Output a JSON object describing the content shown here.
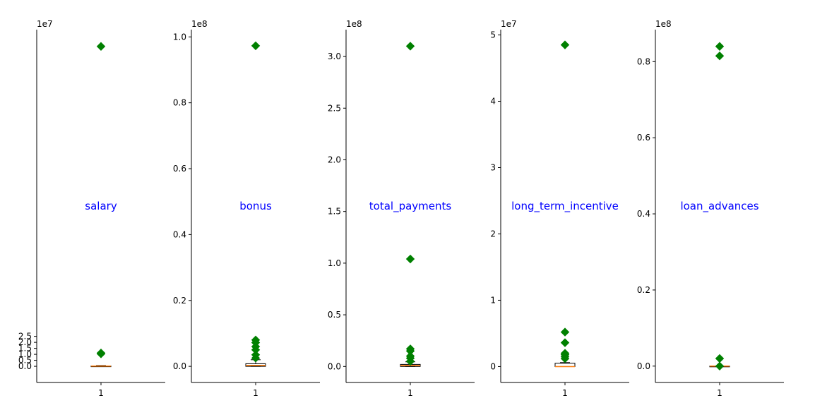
{
  "chart_data": [
    {
      "type": "box",
      "annotation": "salary",
      "exponent_label": "1e7",
      "ylim": [
        -1.35,
        28.1
      ],
      "yticks": [
        0.0,
        0.5,
        1.0,
        1.5,
        2.0,
        2.5
      ],
      "ytick_labels": [
        "0.0",
        "0.5",
        "1.0",
        "1.5",
        "2.0",
        "2.5"
      ],
      "xtick_labels": [
        "1"
      ],
      "box": {
        "q1": 0.0,
        "median": 0.021,
        "q3": 0.027,
        "whisker_low": 0.0,
        "whisker_high": 0.065
      },
      "fliers": [
        1.04,
        1.11,
        26.7
      ]
    },
    {
      "type": "box",
      "annotation": "bonus",
      "exponent_label": "1e8",
      "ylim": [
        -0.049,
        1.022
      ],
      "yticks": [
        0.0,
        0.2,
        0.4,
        0.6,
        0.8,
        1.0
      ],
      "ytick_labels": [
        "0.0",
        "0.2",
        "0.4",
        "0.6",
        "0.8",
        "1.0"
      ],
      "xtick_labels": [
        "1"
      ],
      "box": {
        "q1": 0.0,
        "median": 0.003,
        "q3": 0.008,
        "whisker_low": 0.0,
        "whisker_high": 0.02
      },
      "fliers": [
        0.025,
        0.035,
        0.05,
        0.06,
        0.072,
        0.08,
        0.973
      ]
    },
    {
      "type": "box",
      "annotation": "total_payments",
      "exponent_label": "1e8",
      "ylim": [
        -0.155,
        3.26
      ],
      "yticks": [
        0.0,
        0.5,
        1.0,
        1.5,
        2.0,
        2.5,
        3.0
      ],
      "ytick_labels": [
        "0.0",
        "0.5",
        "1.0",
        "1.5",
        "2.0",
        "2.5",
        "3.0"
      ],
      "xtick_labels": [
        "1"
      ],
      "box": {
        "q1": 0.0,
        "median": 0.011,
        "q3": 0.02,
        "whisker_low": 0.0,
        "whisker_high": 0.045
      },
      "fliers": [
        0.05,
        0.08,
        0.1,
        0.15,
        0.17,
        1.04,
        3.1
      ]
    },
    {
      "type": "box",
      "annotation": "long_term_incentive",
      "exponent_label": "1e7",
      "ylim": [
        -0.24,
        5.08
      ],
      "yticks": [
        0,
        1,
        2,
        3,
        4,
        5
      ],
      "ytick_labels": [
        "0",
        "1",
        "2",
        "3",
        "4",
        "5"
      ],
      "xtick_labels": [
        "1"
      ],
      "box": {
        "q1": 0.0,
        "median": 0.0,
        "q3": 0.05,
        "whisker_low": 0.0,
        "whisker_high": 0.06
      },
      "fliers": [
        0.12,
        0.15,
        0.18,
        0.2,
        0.36,
        0.52,
        4.85
      ]
    },
    {
      "type": "box",
      "annotation": "loan_advances",
      "exponent_label": "1e8",
      "ylim": [
        -0.043,
        0.884
      ],
      "yticks": [
        0.0,
        0.2,
        0.4,
        0.6,
        0.8
      ],
      "ytick_labels": [
        "0.0",
        "0.2",
        "0.4",
        "0.6",
        "0.8"
      ],
      "xtick_labels": [
        "1"
      ],
      "box": {
        "q1": 0.0,
        "median": 0.0,
        "q3": 0.0,
        "whisker_low": 0.0,
        "whisker_high": 0.0
      },
      "fliers": [
        0.0,
        0.02,
        0.815,
        0.84
      ]
    }
  ],
  "colors": {
    "flier": "#008000",
    "median": "#ff7f0e",
    "annotation": "#0000ff"
  }
}
